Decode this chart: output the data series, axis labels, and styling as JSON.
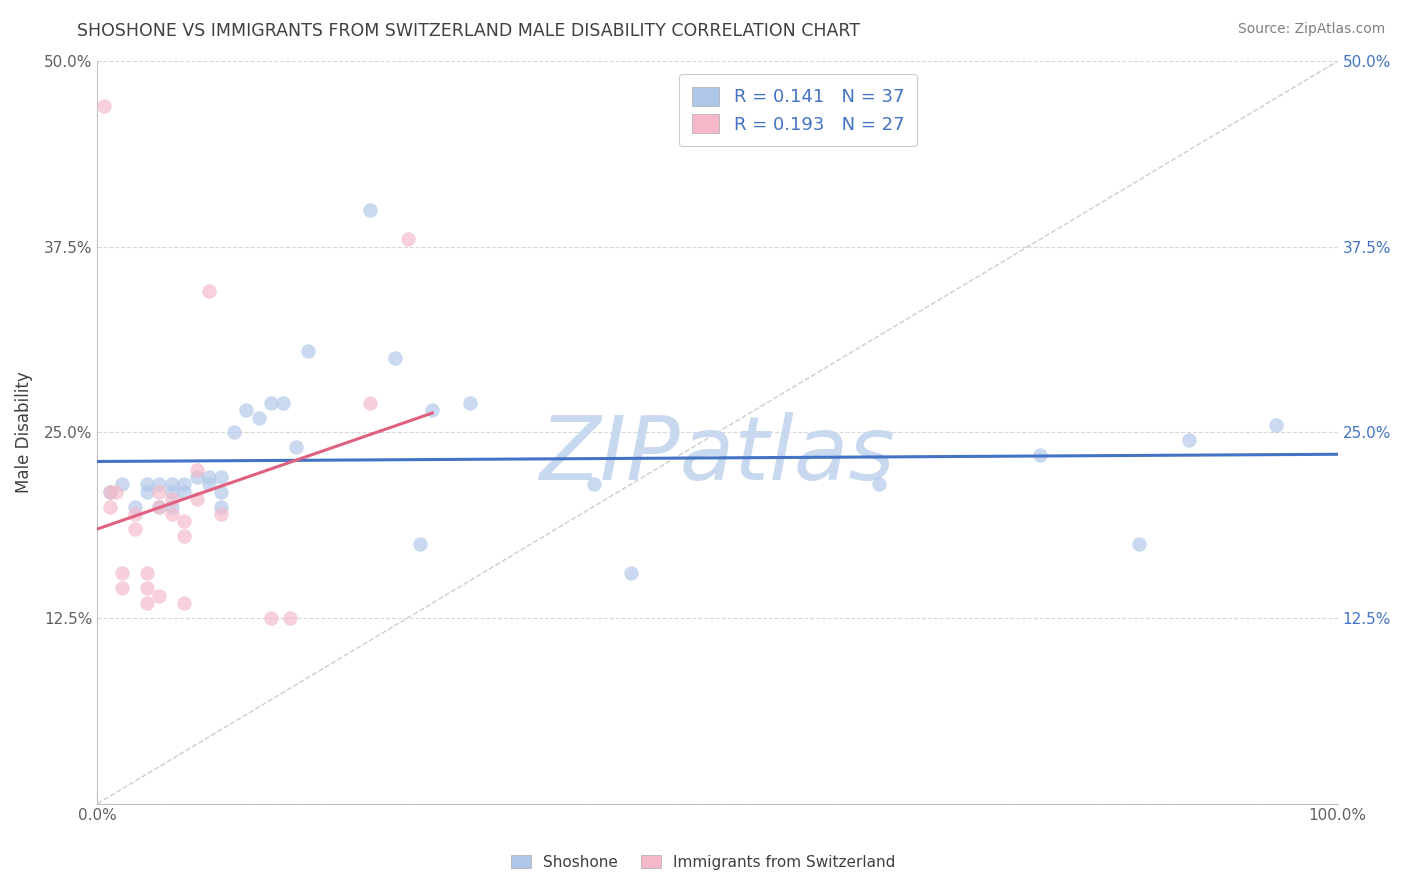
{
  "title": "SHOSHONE VS IMMIGRANTS FROM SWITZERLAND MALE DISABILITY CORRELATION CHART",
  "source": "Source: ZipAtlas.com",
  "ylabel": "Male Disability",
  "xlim": [
    0.0,
    1.0
  ],
  "ylim": [
    0.0,
    0.5
  ],
  "yticks": [
    0.0,
    0.125,
    0.25,
    0.375,
    0.5
  ],
  "ytick_labels_left": [
    "",
    "12.5%",
    "25.0%",
    "37.5%",
    "50.0%"
  ],
  "ytick_labels_right": [
    "",
    "12.5%",
    "25.0%",
    "37.5%",
    "50.0%"
  ],
  "xticks": [
    0.0,
    0.25,
    0.5,
    0.75,
    1.0
  ],
  "xtick_labels": [
    "0.0%",
    "",
    "",
    "",
    "100.0%"
  ],
  "shoshone_x": [
    0.01,
    0.02,
    0.03,
    0.04,
    0.04,
    0.05,
    0.05,
    0.06,
    0.06,
    0.06,
    0.07,
    0.07,
    0.08,
    0.09,
    0.09,
    0.1,
    0.1,
    0.1,
    0.11,
    0.12,
    0.13,
    0.14,
    0.15,
    0.16,
    0.17,
    0.22,
    0.24,
    0.26,
    0.27,
    0.3,
    0.4,
    0.43,
    0.63,
    0.76,
    0.84,
    0.88,
    0.95
  ],
  "shoshone_y": [
    0.21,
    0.215,
    0.2,
    0.21,
    0.215,
    0.215,
    0.2,
    0.215,
    0.21,
    0.2,
    0.21,
    0.215,
    0.22,
    0.22,
    0.215,
    0.22,
    0.21,
    0.2,
    0.25,
    0.265,
    0.26,
    0.27,
    0.27,
    0.24,
    0.305,
    0.4,
    0.3,
    0.175,
    0.265,
    0.27,
    0.215,
    0.155,
    0.215,
    0.235,
    0.175,
    0.245,
    0.255
  ],
  "swiss_x": [
    0.005,
    0.01,
    0.01,
    0.015,
    0.02,
    0.02,
    0.03,
    0.03,
    0.04,
    0.04,
    0.04,
    0.05,
    0.05,
    0.05,
    0.06,
    0.06,
    0.07,
    0.07,
    0.07,
    0.08,
    0.08,
    0.09,
    0.1,
    0.14,
    0.155,
    0.22,
    0.25
  ],
  "swiss_y": [
    0.47,
    0.21,
    0.2,
    0.21,
    0.155,
    0.145,
    0.195,
    0.185,
    0.155,
    0.145,
    0.135,
    0.21,
    0.2,
    0.14,
    0.205,
    0.195,
    0.19,
    0.18,
    0.135,
    0.225,
    0.205,
    0.345,
    0.195,
    0.125,
    0.125,
    0.27,
    0.38
  ],
  "shoshone_dot_color": "#aec6e8",
  "swiss_dot_color": "#f4b8c8",
  "shoshone_line_color": "#4472c4",
  "swiss_line_color": "#e06080",
  "diagonal_color": "#c8c8c8",
  "background_color": "#ffffff",
  "grid_color": "#d8d8d8",
  "title_color": "#404040",
  "source_color": "#808080",
  "axis_label_color": "#404040",
  "tick_label_color": "#606060",
  "right_ytick_color": "#4472c4",
  "dot_size": 100,
  "dot_alpha": 0.65,
  "R_shoshone": 0.141,
  "N_shoshone": 37,
  "R_swiss": 0.193,
  "N_swiss": 27,
  "watermark_text": "ZIPatlas",
  "watermark_color": "#c8d8ee",
  "legend_fontsize": 13,
  "title_fontsize": 12.5,
  "tick_fontsize": 11,
  "series_labels": [
    "Shoshone",
    "Immigrants from Switzerland"
  ]
}
